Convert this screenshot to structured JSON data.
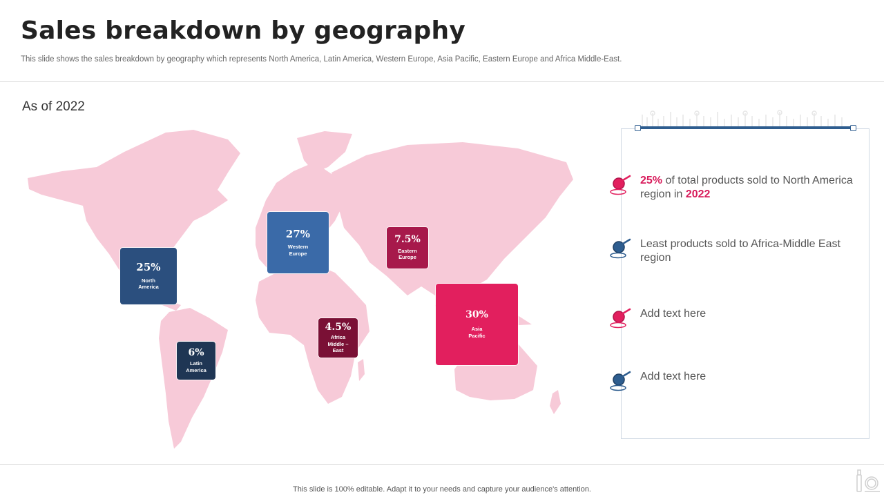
{
  "header": {
    "title": "Sales breakdown by geography",
    "subtitle": "This slide shows the sales breakdown by geography which represents North America, Latin America, Western Europe, Asia Pacific, Eastern Europe and Africa Middle-East."
  },
  "as_of": "As of 2022",
  "regions": [
    {
      "pct": "25%",
      "label": "North\nAmerica",
      "color": "#2b4f7e"
    },
    {
      "pct": "6%",
      "label": "Latin\nAmerica",
      "color": "#1f3654"
    },
    {
      "pct": "27%",
      "label": "Western\nEurope",
      "color": "#3a6aa8"
    },
    {
      "pct": "7.5%",
      "label": "Eastern\nEurope",
      "color": "#a7194b"
    },
    {
      "pct": "4.5%",
      "label": "Africa\nMiddle –\nEast",
      "color": "#7a1035"
    },
    {
      "pct": "30%",
      "label": "Asia\nPacific",
      "color": "#e21f5e"
    }
  ],
  "panel": {
    "items": [
      {
        "highlight": "25%",
        "text": " of total products sold to North America region in ",
        "highlight2": "2022",
        "icon": "magnifier-pink-icon"
      },
      {
        "text": "Least products sold to Africa-Middle East region",
        "icon": "magnifier-blue-icon"
      },
      {
        "text": "Add text here",
        "icon": "magnifier-pink-icon"
      },
      {
        "text": "Add text here",
        "icon": "magnifier-blue-icon"
      }
    ]
  },
  "footer": "This slide is 100% editable. Adapt it to your needs and capture your audience's attention.",
  "colors": {
    "map": "#f7cad8",
    "accent_pink": "#e21f5e",
    "accent_blue": "#2e5d8f"
  }
}
